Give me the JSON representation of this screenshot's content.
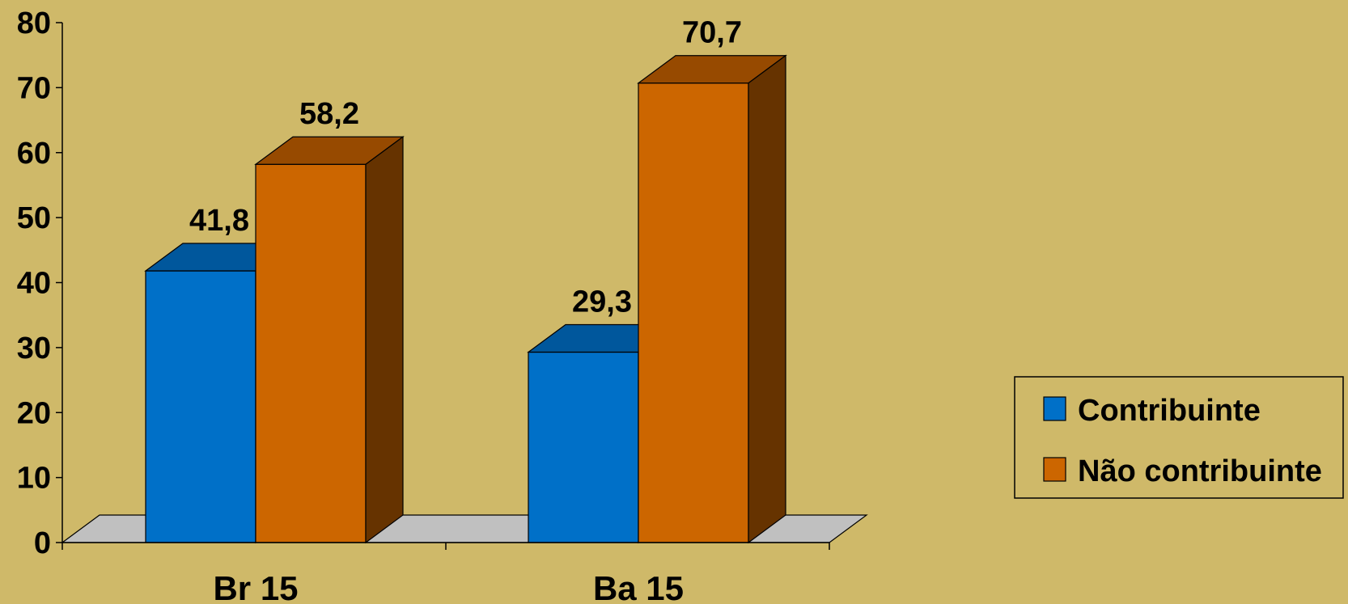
{
  "chart_data": {
    "type": "bar",
    "categories": [
      "Br 15",
      "Ba 15"
    ],
    "series": [
      {
        "name": "Contribuinte",
        "values": [
          41.8,
          29.3
        ]
      },
      {
        "name": "Não contribuinte",
        "values": [
          58.2,
          70.7
        ]
      }
    ],
    "value_labels": [
      [
        "41,8",
        "29,3"
      ],
      [
        "58,2",
        "70,7"
      ]
    ],
    "ylim": [
      0,
      80
    ],
    "yticks": [
      0,
      10,
      20,
      30,
      40,
      50,
      60,
      70,
      80
    ],
    "grid": false,
    "legend_position": "right",
    "style": "3d-column",
    "colors": {
      "background": "#CFB969",
      "floor": "#C0C0C0",
      "series": [
        {
          "front": "#0070C8",
          "top": "#00579C",
          "side": "#003E70"
        },
        {
          "front": "#CC6600",
          "top": "#974A00",
          "side": "#663300"
        }
      ]
    }
  }
}
